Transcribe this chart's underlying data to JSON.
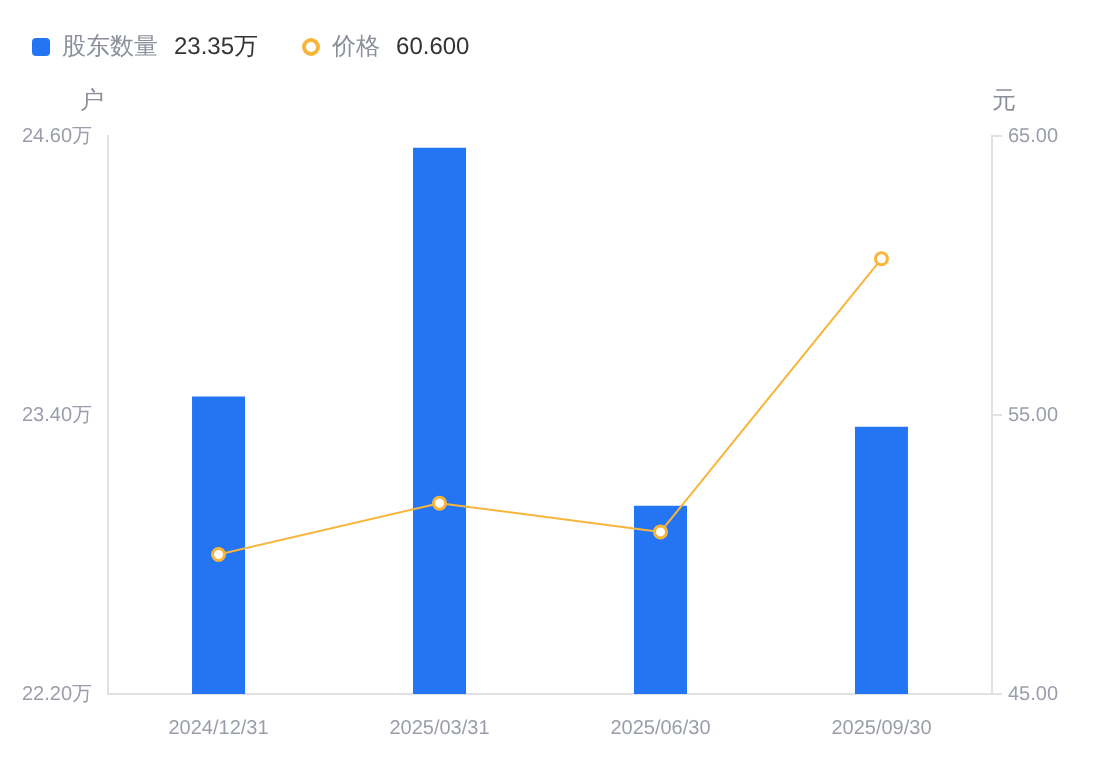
{
  "chart_data": {
    "type": "bar",
    "categories": [
      "2024/12/31",
      "2025/03/31",
      "2025/06/30",
      "2025/09/30"
    ],
    "ylabel": "户",
    "y2label": "元",
    "series": [
      {
        "name": "股东数量",
        "color": "#2475f3",
        "values": [
          23.48,
          24.55,
          23.01,
          23.35
        ]
      },
      {
        "name": "价格",
        "type": "line",
        "axis": "y2",
        "color": "#f8b53c",
        "marker": "circle",
        "values": [
          50.0,
          51.84,
          50.81,
          60.6
        ]
      }
    ],
    "ylim": [
      22.2,
      24.6
    ],
    "yticks": [
      {
        "value": 22.2,
        "label": "22.20万"
      },
      {
        "value": 23.4,
        "label": "23.40万"
      },
      {
        "value": 24.6,
        "label": "24.60万"
      }
    ],
    "y2lim": [
      45,
      65
    ],
    "y2ticks": [
      {
        "value": 45,
        "label": "45.00"
      },
      {
        "value": 55,
        "label": "55.00"
      },
      {
        "value": 65,
        "label": "65.00"
      }
    ],
    "legend": "top left",
    "grid": false,
    "annotations": [
      "23.35万",
      "60.600"
    ]
  }
}
